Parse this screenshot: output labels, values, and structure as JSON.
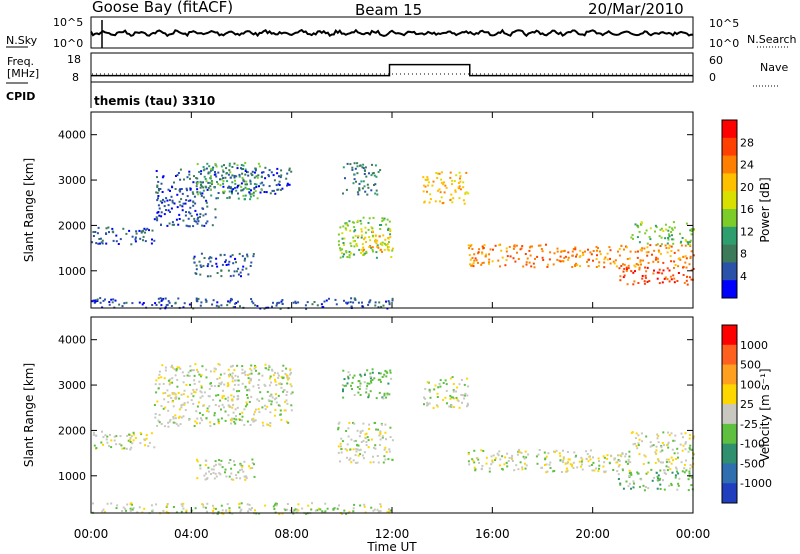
{
  "header": {
    "station": "Goose Bay (fitACF)",
    "beam": "Beam 15",
    "date": "20/Mar/2010"
  },
  "noise_panel": {
    "left_label": "N.Sky",
    "right_label": "N.Search",
    "left_ticks": [
      "10^5",
      "10^0"
    ],
    "right_ticks": [
      "10^5",
      "10^0"
    ]
  },
  "freq_panel": {
    "left_label_1": "Freq.",
    "left_label_2": "[MHz]",
    "cpid_label": "CPID",
    "right_label": "Nave",
    "left_ticks": [
      "18",
      "8"
    ],
    "right_ticks": [
      "60",
      "0"
    ],
    "cpid_text": "themis (tau) 3310"
  },
  "power_panel": {
    "ylabel": "Slant Range [km]",
    "colorbar_label": "Power [dB]",
    "colorbar_ticks": [
      "28",
      "24",
      "20",
      "16",
      "12",
      "8",
      "4"
    ],
    "colors": [
      "#0000ff",
      "#2a52a8",
      "#3d7a5a",
      "#2f9e6e",
      "#7ccd2a",
      "#d8e000",
      "#ffc000",
      "#ff8000",
      "#ff4000",
      "#ff0000"
    ]
  },
  "velocity_panel": {
    "ylabel": "Slant Range [km]",
    "colorbar_label": "Velocity [m s⁻¹]",
    "colorbar_ticks": [
      "1000",
      "500",
      "100",
      "25",
      "-25",
      "-100",
      "-500",
      "-1000"
    ],
    "colors": [
      "#1f3fbf",
      "#2f6fb0",
      "#2f8f6f",
      "#5fc040",
      "#c8c8c0",
      "#ffd700",
      "#ffa020",
      "#ff6020",
      "#ff0000"
    ]
  },
  "x_axis": {
    "label": "Time UT",
    "ticks": [
      "00:00",
      "04:00",
      "08:00",
      "12:00",
      "16:00",
      "20:00",
      "00:00"
    ]
  },
  "chart_data": {
    "type": "heatmap",
    "x": {
      "unit": "hours UT",
      "range": [
        0,
        24
      ],
      "ticks": [
        0,
        4,
        8,
        12,
        16,
        20,
        24
      ]
    },
    "y": {
      "unit": "km",
      "range": [
        180,
        4500
      ],
      "ticks": [
        1000,
        2000,
        3000,
        4000
      ]
    },
    "freq_mhz": {
      "before": 10,
      "during": 15,
      "after": 10,
      "switch_hours": [
        11.9,
        15.1
      ]
    },
    "power_regions": [
      {
        "t0": 0.0,
        "t1": 2.5,
        "r0": 1600,
        "r1": 2000,
        "level": 1
      },
      {
        "t0": 2.5,
        "t1": 5.0,
        "r0": 2000,
        "r1": 3300,
        "level": 1
      },
      {
        "t0": 4.2,
        "t1": 6.8,
        "r0": 2600,
        "r1": 3400,
        "level": 3
      },
      {
        "t0": 5.0,
        "t1": 8.0,
        "r0": 2700,
        "r1": 3300,
        "level": 1
      },
      {
        "t0": 4.0,
        "t1": 6.5,
        "r0": 900,
        "r1": 1400,
        "level": 1
      },
      {
        "t0": 9.8,
        "t1": 12.0,
        "r0": 1300,
        "r1": 2200,
        "level": 4
      },
      {
        "t0": 10.5,
        "t1": 12.0,
        "r0": 1400,
        "r1": 1900,
        "level": 6
      },
      {
        "t0": 10.0,
        "t1": 11.5,
        "r0": 2700,
        "r1": 3400,
        "level": 2
      },
      {
        "t0": 13.2,
        "t1": 15.0,
        "r0": 2500,
        "r1": 3200,
        "level": 6
      },
      {
        "t0": 15.0,
        "t1": 24.0,
        "r0": 1100,
        "r1": 1600,
        "level": 7
      },
      {
        "t0": 21.0,
        "t1": 24.0,
        "r0": 700,
        "r1": 1100,
        "level": 8
      },
      {
        "t0": 21.5,
        "t1": 24.0,
        "r0": 1600,
        "r1": 2100,
        "level": 4
      },
      {
        "t0": 0.0,
        "t1": 12.0,
        "r0": 180,
        "r1": 420,
        "level": 1
      }
    ],
    "velocity_regions": [
      {
        "t0": 0.0,
        "t1": 2.5,
        "r0": 1600,
        "r1": 2000,
        "level": 4
      },
      {
        "t0": 2.5,
        "t1": 8.0,
        "r0": 2100,
        "r1": 3500,
        "level": 4
      },
      {
        "t0": 4.0,
        "t1": 6.5,
        "r0": 900,
        "r1": 1400,
        "level": 4
      },
      {
        "t0": 9.8,
        "t1": 12.0,
        "r0": 1300,
        "r1": 2200,
        "level": 4
      },
      {
        "t0": 10.0,
        "t1": 12.0,
        "r0": 2700,
        "r1": 3400,
        "level": 3
      },
      {
        "t0": 13.2,
        "t1": 15.0,
        "r0": 2500,
        "r1": 3200,
        "level": 4
      },
      {
        "t0": 15.0,
        "t1": 24.0,
        "r0": 1100,
        "r1": 1600,
        "level": 4
      },
      {
        "t0": 21.0,
        "t1": 24.0,
        "r0": 700,
        "r1": 1100,
        "level": 3
      },
      {
        "t0": 21.5,
        "t1": 24.0,
        "r0": 1600,
        "r1": 2000,
        "level": 4
      },
      {
        "t0": 0.0,
        "t1": 12.0,
        "r0": 180,
        "r1": 420,
        "level": 4
      }
    ]
  }
}
